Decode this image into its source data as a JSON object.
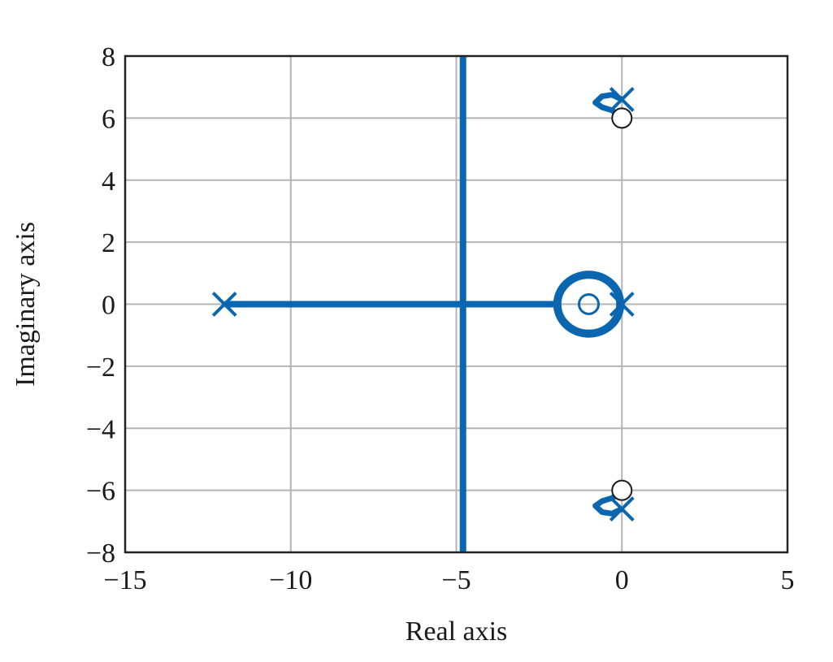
{
  "chart_data": {
    "type": "root-locus",
    "xlabel": "Real axis",
    "ylabel": "Imaginary axis",
    "xlim": [
      -15,
      5
    ],
    "ylim": [
      -8,
      8
    ],
    "x_ticks": [
      -15,
      -10,
      -5,
      0,
      5
    ],
    "y_ticks": [
      -8,
      -6,
      -4,
      -2,
      0,
      2,
      4,
      6,
      8
    ],
    "x_tick_labels": [
      "−15",
      "−10",
      "−5",
      "0",
      "5"
    ],
    "y_tick_labels": [
      "−8",
      "−6",
      "−4",
      "−2",
      "0",
      "2",
      "4",
      "6",
      "8"
    ],
    "grid": true,
    "colors": {
      "locus": "#0b66b0",
      "zero": "#1a1a1a",
      "grid": "#b4b4b4",
      "frame": "#222222"
    },
    "poles": [
      {
        "x": -12,
        "y": 0
      },
      {
        "x": 0,
        "y": 0
      },
      {
        "x": 0,
        "y": 6.6
      },
      {
        "x": 0,
        "y": -6.6
      }
    ],
    "zeros": [
      {
        "x": 0,
        "y": 6
      },
      {
        "x": 0,
        "y": -6
      }
    ],
    "locus_zero": {
      "x": -1,
      "y": 0
    },
    "branches": [
      {
        "name": "real-axis",
        "points": [
          [
            -12,
            0
          ],
          [
            -1.9,
            0
          ]
        ]
      },
      {
        "name": "vertical-asymptote",
        "points": [
          [
            -4.8,
            -8
          ],
          [
            -4.8,
            8
          ]
        ]
      },
      {
        "name": "circle",
        "center": [
          -1,
          0
        ],
        "radius": 0.95
      },
      {
        "name": "upper-loop",
        "points": [
          [
            0,
            6.6
          ],
          [
            -0.3,
            6.75
          ],
          [
            -0.6,
            6.7
          ],
          [
            -0.8,
            6.5
          ],
          [
            -0.6,
            6.35
          ],
          [
            -0.3,
            6.25
          ],
          [
            -0.1,
            6.1
          ],
          [
            0,
            6
          ]
        ]
      },
      {
        "name": "lower-loop",
        "points": [
          [
            0,
            -6.6
          ],
          [
            -0.3,
            -6.75
          ],
          [
            -0.6,
            -6.7
          ],
          [
            -0.8,
            -6.5
          ],
          [
            -0.6,
            -6.35
          ],
          [
            -0.3,
            -6.25
          ],
          [
            -0.1,
            -6.1
          ],
          [
            0,
            -6
          ]
        ]
      }
    ]
  }
}
